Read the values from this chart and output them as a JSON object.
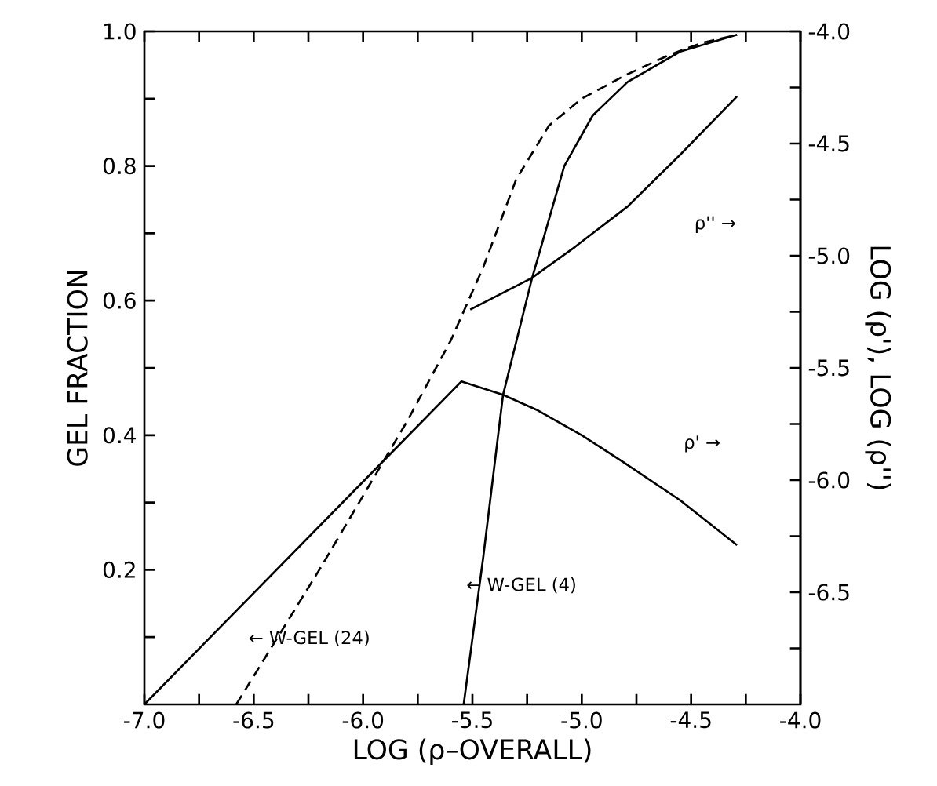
{
  "chart_data": {
    "type": "line",
    "xlabel": "LOG (ρ–OVERALL)",
    "ylabel": "GEL FRACTION",
    "y2label": "LOG (ρ'), LOG (ρ'')",
    "xlim": [
      -7,
      -4
    ],
    "ylim": [
      0,
      1
    ],
    "y2lim": [
      -7,
      -4
    ],
    "xticks": [
      {
        "value": -7,
        "label": "-7.0"
      },
      {
        "value": -6.75,
        "label": null
      },
      -6.5,
      {
        "value": -6.25,
        "label": null
      },
      {
        "value": -6,
        "label": "-6.0"
      },
      {
        "value": -5.75,
        "label": null
      },
      -5.5,
      {
        "value": -5.25,
        "label": null
      },
      {
        "value": -5,
        "label": "-5.0"
      },
      {
        "value": -4.75,
        "label": null
      },
      -4.5,
      {
        "value": -4.25,
        "label": null
      },
      {
        "value": -4,
        "label": "-4.0"
      }
    ],
    "yticks": [
      {
        "value": 0.1,
        "label": null
      },
      0.2,
      {
        "value": 0.3,
        "label": null
      },
      0.4,
      {
        "value": 0.5,
        "label": null
      },
      0.6,
      {
        "value": 0.7,
        "label": null
      },
      0.8,
      {
        "value": 0.9,
        "label": null
      },
      {
        "value": 1,
        "label": "1.0"
      }
    ],
    "y2ticks": [
      {
        "value": -6.75,
        "label": null
      },
      -6.5,
      {
        "value": -6.25,
        "label": null
      },
      {
        "value": -6,
        "label": "-6.0"
      },
      {
        "value": -5.75,
        "label": null
      },
      -5.5,
      {
        "value": -5.25,
        "label": null
      },
      {
        "value": -5,
        "label": "-5.0"
      },
      {
        "value": -4.75,
        "label": null
      },
      -4.5,
      {
        "value": -4.25,
        "label": null
      },
      {
        "value": -4,
        "label": "-4.0"
      }
    ],
    "series": [
      {
        "color": "#000000",
        "axis": "y2",
        "line_style": "solid",
        "x": [
          -7.0,
          -5.55,
          -5.36,
          -5.2,
          -5.0,
          -4.81,
          -4.55,
          -4.29
        ],
        "values": [
          -7.0,
          -5.56,
          -5.62,
          -5.69,
          -5.8,
          -5.92,
          -6.09,
          -6.29
        ]
      },
      {
        "color": "#000000",
        "axis": "y2",
        "line_style": "solid",
        "x": [
          -5.51,
          -5.23,
          -5.03,
          -4.79,
          -4.55,
          -4.29
        ],
        "values": [
          -5.24,
          -5.1,
          -4.96,
          -4.78,
          -4.55,
          -4.29
        ]
      },
      {
        "color": "#000000",
        "line_style": "dashed",
        "x": [
          -6.58,
          -6.2,
          -5.8,
          -5.6,
          -5.45,
          -5.3,
          -5.15,
          -5.0,
          -4.8,
          -4.6,
          -4.45,
          -4.29
        ],
        "values": [
          0,
          0.2,
          0.42,
          0.54,
          0.65,
          0.78,
          0.86,
          0.9,
          0.935,
          0.965,
          0.983,
          0.995
        ]
      },
      {
        "color": "#000000",
        "line_style": "solid",
        "x": [
          -5.54,
          -5.45,
          -5.36,
          -5.23,
          -5.08,
          -4.95,
          -4.79,
          -4.55,
          -4.29
        ],
        "values": [
          0,
          0.22,
          0.46,
          0.63,
          0.8,
          0.875,
          0.925,
          0.97,
          0.995
        ]
      }
    ],
    "annotations": [
      "← W-GEL (24)",
      "← W-GEL (4)",
      "ρ'' →",
      "ρ' →"
    ]
  }
}
